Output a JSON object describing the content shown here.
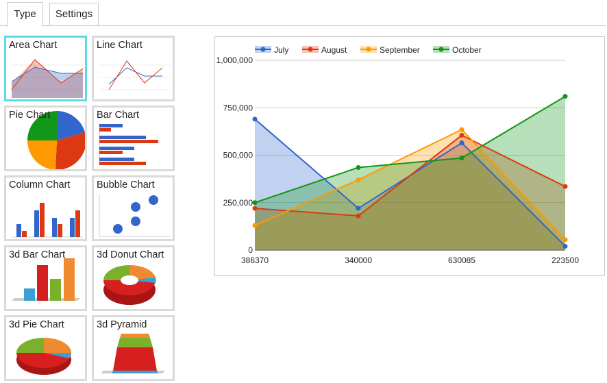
{
  "tabs": [
    {
      "label": "Type"
    },
    {
      "label": "Settings"
    }
  ],
  "chart_types": [
    {
      "label": "Area Chart",
      "icon": "area-chart-icon"
    },
    {
      "label": "Line Chart",
      "icon": "line-chart-icon"
    },
    {
      "label": "Pie Chart",
      "icon": "pie-chart-icon"
    },
    {
      "label": "Bar Chart",
      "icon": "bar-chart-icon"
    },
    {
      "label": "Column Chart",
      "icon": "column-chart-icon"
    },
    {
      "label": "Bubble Chart",
      "icon": "bubble-chart-icon"
    },
    {
      "label": "3d Bar Chart",
      "icon": "3d-bar-chart-icon"
    },
    {
      "label": "3d Donut Chart",
      "icon": "3d-donut-chart-icon"
    },
    {
      "label": "3d Pie Chart",
      "icon": "3d-pie-chart-icon"
    },
    {
      "label": "3d Pyramid",
      "icon": "3d-pyramid-icon"
    }
  ],
  "colors": {
    "selected_border": "#5bdbe8",
    "thumb_border": "#dadada",
    "blue": "#3366cc",
    "red": "#dc3912",
    "orange": "#ff9900",
    "green": "#109618"
  },
  "chart_data": {
    "type": "area",
    "categories": [
      "386370",
      "340000",
      "630085",
      "223500"
    ],
    "series": [
      {
        "name": "July",
        "color": "#3366cc",
        "values": [
          690000,
          220000,
          565000,
          20000
        ]
      },
      {
        "name": "August",
        "color": "#dc3912",
        "values": [
          220000,
          180000,
          605000,
          335000
        ]
      },
      {
        "name": "September",
        "color": "#ff9900",
        "values": [
          130000,
          370000,
          635000,
          55000
        ]
      },
      {
        "name": "October",
        "color": "#109618",
        "values": [
          250000,
          435000,
          485000,
          810000
        ]
      }
    ],
    "yticks": [
      "0",
      "250,000",
      "500,000",
      "750,000",
      "1,000,000"
    ],
    "ylim": [
      0,
      1000000
    ],
    "legend_position": "top",
    "grid": true
  }
}
